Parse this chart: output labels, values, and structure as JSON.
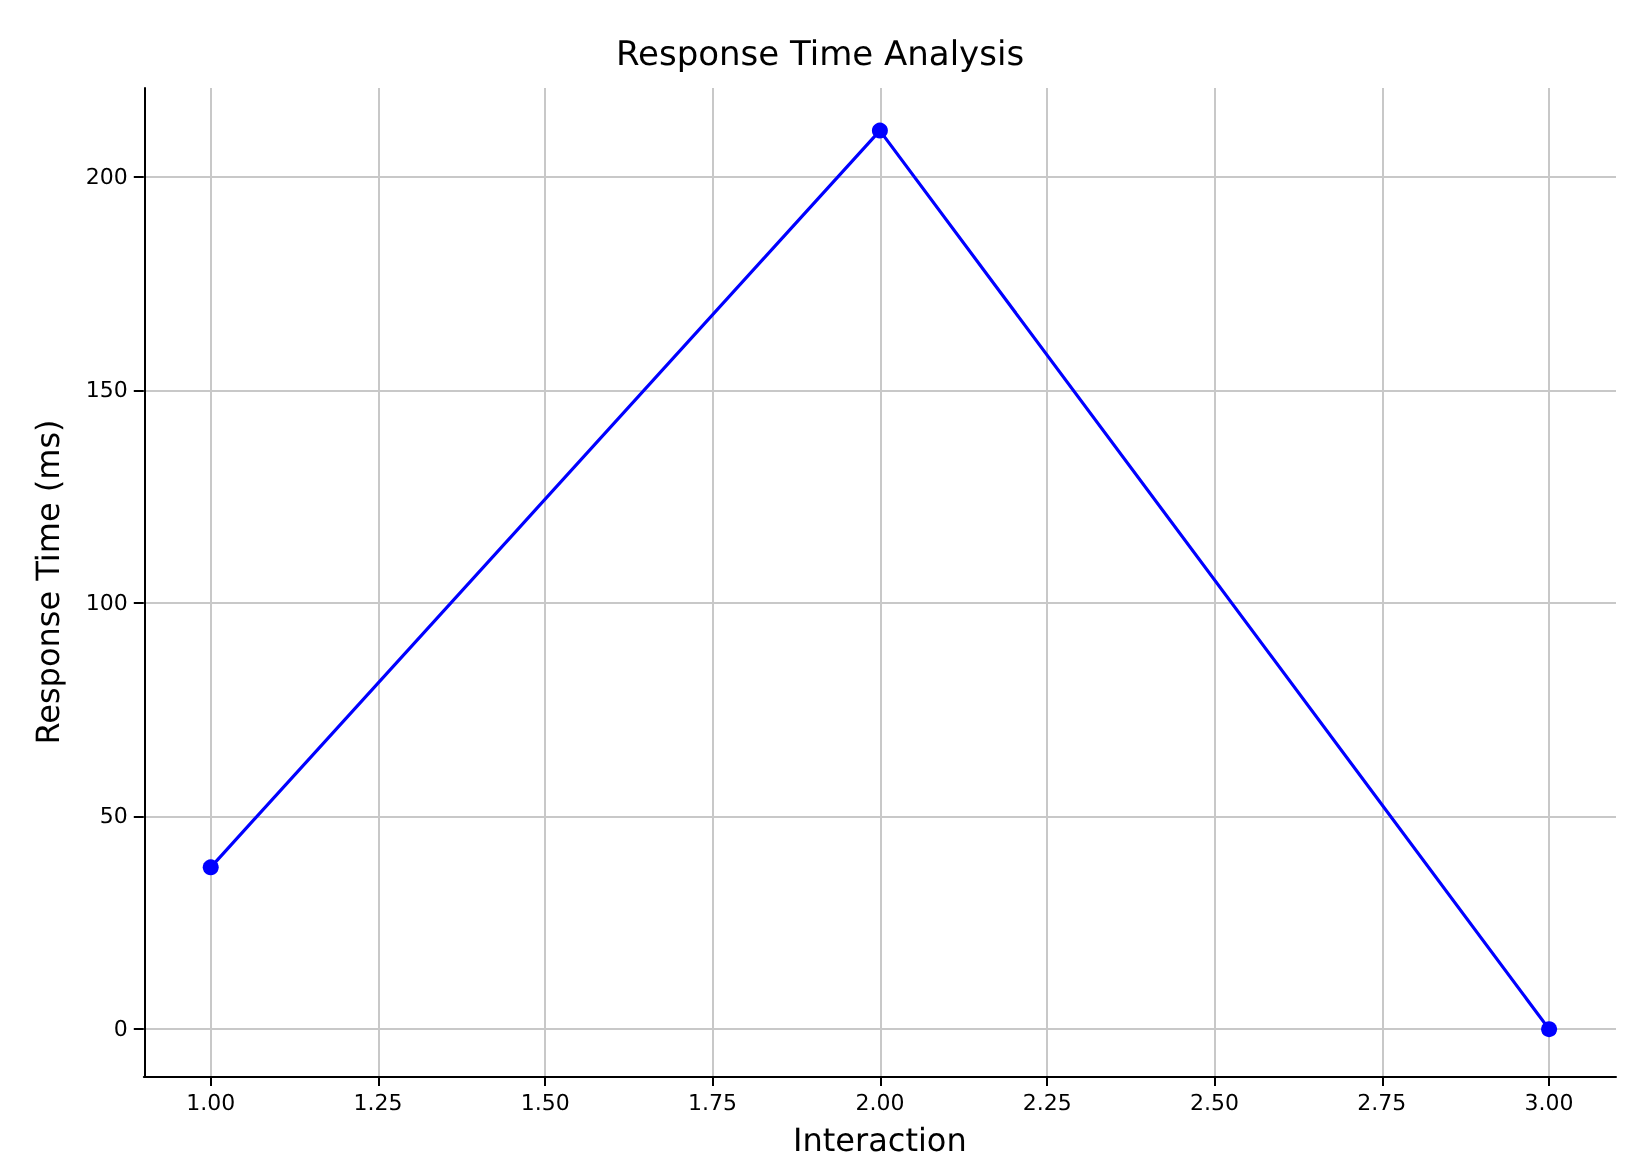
{
  "chart_data": {
    "type": "line",
    "title": "Response Time Analysis",
    "xlabel": "Interaction",
    "ylabel": "Response Time (ms)",
    "x": [
      1,
      2,
      3
    ],
    "series": [
      {
        "color": "#0000ff",
        "values": [
          38,
          211,
          0
        ]
      }
    ],
    "xlim": [
      0.9,
      3.1
    ],
    "xticks": [
      {
        "value": 1,
        "label": "1.00"
      },
      {
        "value": 1.25,
        "label": "1.25"
      },
      {
        "value": 1.5,
        "label": "1.50"
      },
      {
        "value": 1.75,
        "label": "1.75"
      },
      {
        "value": 2,
        "label": "2.00"
      },
      {
        "value": 2.25,
        "label": "2.25"
      },
      {
        "value": 2.5,
        "label": "2.50"
      },
      {
        "value": 2.75,
        "label": "2.75"
      },
      {
        "value": 3,
        "label": "3.00"
      }
    ],
    "ylim": [
      -11,
      221
    ],
    "yticks": [
      0,
      50,
      100,
      150,
      200
    ],
    "grid": true,
    "marker": "circle",
    "line_style": "solid"
  }
}
